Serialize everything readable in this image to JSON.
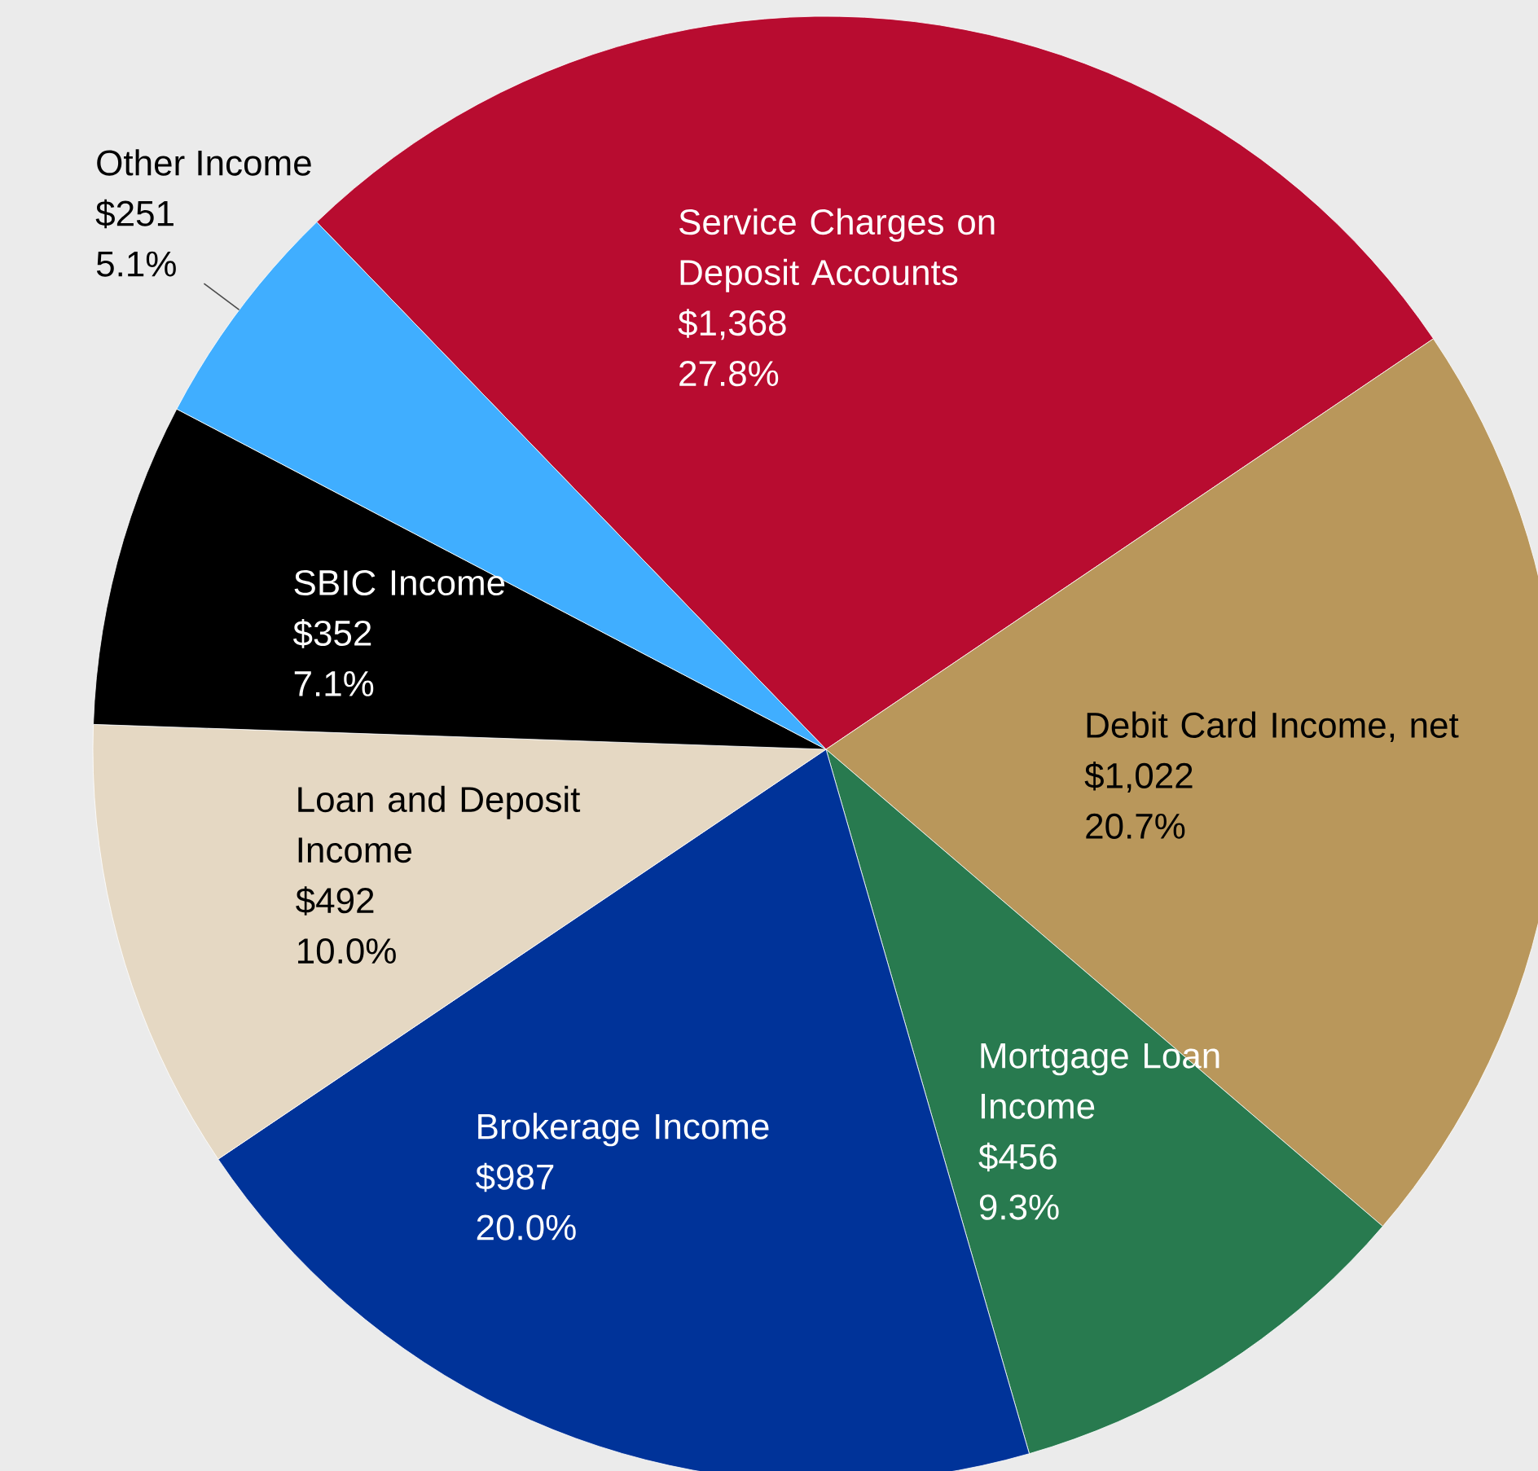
{
  "chart_data": {
    "type": "pie",
    "categories": [
      "Service Charges on Deposit Accounts",
      "Debit Card Income, net",
      "Mortgage Loan Income",
      "Brokerage Income",
      "Loan and Deposit Income",
      "SBIC Income",
      "Other Income"
    ],
    "values": [
      1368,
      1022,
      456,
      987,
      492,
      352,
      251
    ],
    "colors": [
      "#b80c30",
      "#b9975b",
      "#287a4f",
      "#003399",
      "#e5d8c3",
      "#000000",
      "#40aeff"
    ],
    "value_labels": [
      "$1,368",
      "$1,022",
      "$456",
      "$987",
      "$492",
      "$352",
      "$251"
    ],
    "annotations": [
      "27.8%",
      "20.7%",
      "9.3%",
      "20.0%",
      "10.0%",
      "7.1%",
      "5.1%"
    ]
  }
}
